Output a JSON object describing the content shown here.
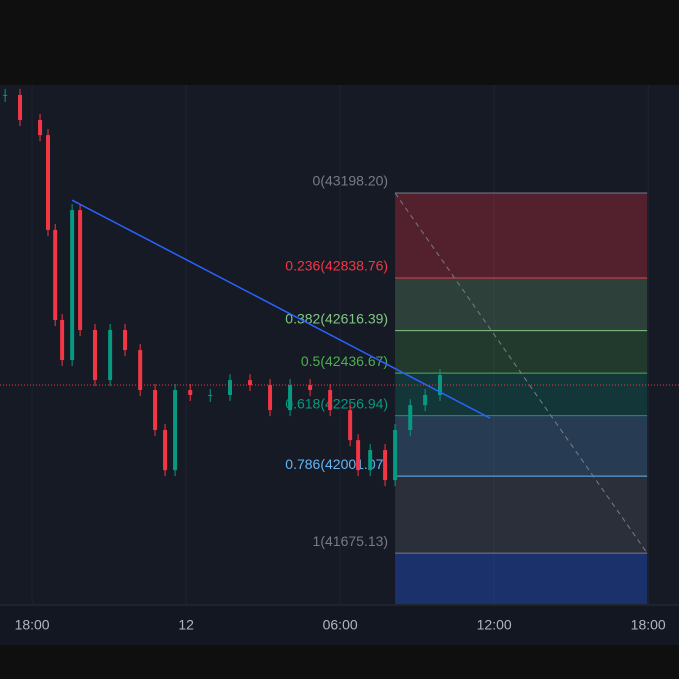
{
  "chart_data": {
    "type": "candlestick",
    "xlim": [
      -1.25,
      25.2
    ],
    "ylim": [
      41460,
      43655
    ],
    "xticks": [
      {
        "value": 0,
        "label": "18:00"
      },
      {
        "value": 6,
        "label": "12"
      },
      {
        "value": 12,
        "label": "06:00"
      },
      {
        "value": 18,
        "label": "12:00"
      },
      {
        "value": 24,
        "label": "18:00"
      }
    ],
    "grid": true,
    "up_color": "#089981",
    "down_color": "#f23645",
    "price": {
      "x": [
        -1.05,
        -0.47,
        0.31,
        0.62,
        0.9,
        1.17,
        1.56,
        1.87,
        2.45,
        3.04,
        3.62,
        4.21,
        4.79,
        5.18,
        5.57,
        6.16,
        6.94,
        7.71,
        8.49,
        9.27,
        10.05,
        10.83,
        11.61,
        12.39,
        12.7,
        13.17,
        13.75,
        14.14,
        14.73,
        15.31,
        15.89
      ],
      "values": [
        43613,
        43507,
        43443,
        43042,
        42661,
        42492,
        43126,
        42619,
        42407,
        42619,
        42534,
        42365,
        42196,
        42026,
        42365,
        42344,
        42344,
        42407,
        42386,
        42280,
        42386,
        42365,
        42280,
        42153,
        42026,
        42111,
        41984,
        42196,
        42301,
        42344,
        42428
      ]
    },
    "last_price": {
      "value": 42386,
      "color": "#f23645"
    },
    "trendline": {
      "x": [
        1.56,
        17.84
      ],
      "values": [
        43168,
        42246
      ],
      "color": "#2962ff"
    },
    "fib": {
      "x": [
        14.14,
        23.96
      ],
      "levels": [
        {
          "value": 43198.2,
          "label": "0(43198.20)",
          "color": "#787b86",
          "fill": "rgba(242,54,69,0.28)"
        },
        {
          "value": 42838.76,
          "label": "0.236(42838.76)",
          "color": "#f23645",
          "fill": "rgba(129,199,132,0.22)"
        },
        {
          "value": 42616.39,
          "label": "0.382(42616.39)",
          "color": "#81c784",
          "fill": "rgba(76,175,80,0.22)"
        },
        {
          "value": 42436.67,
          "label": "0.5(42436.67)",
          "color": "#4caf50",
          "fill": "rgba(8,153,129,0.22)"
        },
        {
          "value": 42256.94,
          "label": "0.618(42256.94)",
          "color": "#089981",
          "fill": "rgba(100,181,246,0.22)"
        },
        {
          "value": 42001.07,
          "label": "0.786(42001.07)",
          "color": "#64b5f6",
          "fill": "rgba(120,123,134,0.22)"
        },
        {
          "value": 41675.13,
          "label": "1(41675.13)",
          "color": "#787b86",
          "fill": "rgba(41,98,255,0.32)"
        }
      ]
    }
  }
}
